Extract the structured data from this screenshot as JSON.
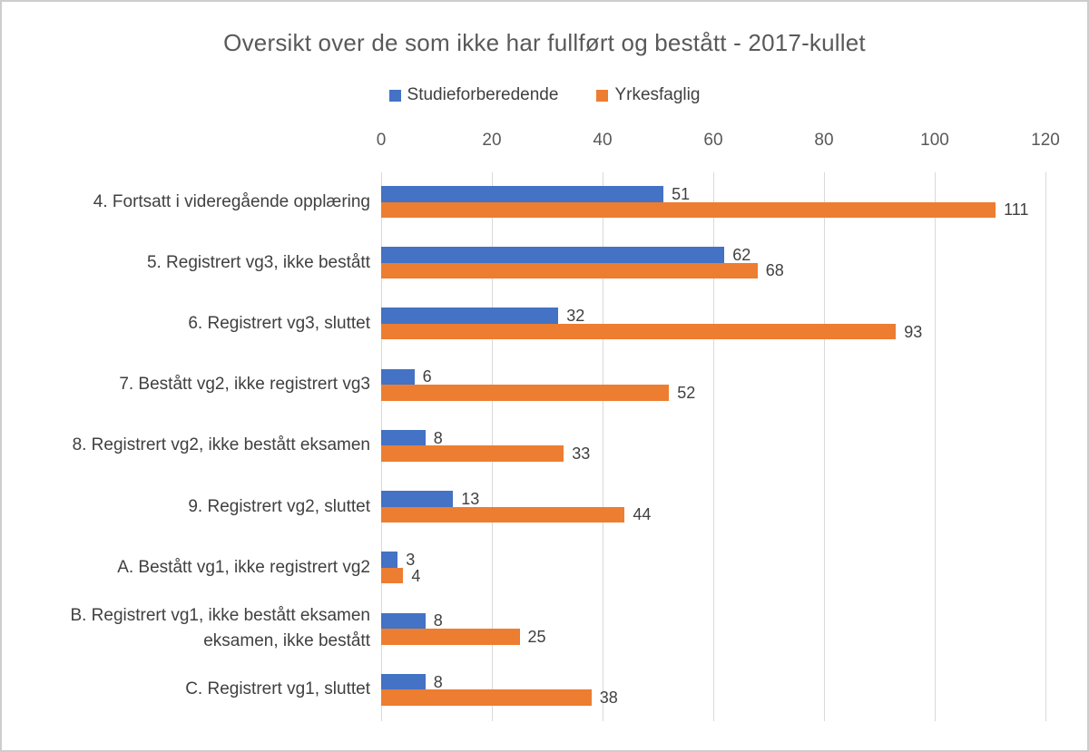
{
  "chart_data": {
    "type": "bar",
    "orientation": "horizontal",
    "title": "Oversikt over de som ikke har fullført og bestått - 2017-kullet",
    "categories": [
      "4. Fortsatt i videregående opplæring",
      "5. Registrert vg3, ikke bestått",
      "6. Registrert vg3, sluttet",
      "7. Bestått vg2, ikke registrert vg3",
      "8. Registrert vg2, ikke bestått eksamen",
      "9. Registrert vg2, sluttet",
      "A. Bestått vg1, ikke registrert vg2",
      "B. Registrert vg1, ikke bestått eksamen\neksamen, ikke bestått",
      "C. Registrert vg1, sluttet"
    ],
    "series": [
      {
        "name": "Studieforberedende",
        "color": "#4472C4",
        "values": [
          51,
          62,
          32,
          6,
          8,
          13,
          3,
          8,
          8
        ]
      },
      {
        "name": "Yrkesfaglig",
        "color": "#ED7D31",
        "values": [
          111,
          68,
          93,
          52,
          33,
          44,
          4,
          25,
          38
        ]
      }
    ],
    "xlim": [
      0,
      120
    ],
    "xticks": [
      0,
      20,
      40,
      60,
      80,
      100,
      120
    ],
    "grid": true,
    "legend_position": "top",
    "data_labels": true,
    "xlabel": "",
    "ylabel": ""
  },
  "colors": {
    "series1": "#4472C4",
    "series2": "#ED7D31",
    "gridline": "#D9D9D9",
    "title_text": "#595959",
    "tick_text": "#595959",
    "category_text": "#404040",
    "value_text": "#404040",
    "legend_text": "#404040",
    "border": "#CFCDCB",
    "background": "#FFFFFF"
  }
}
